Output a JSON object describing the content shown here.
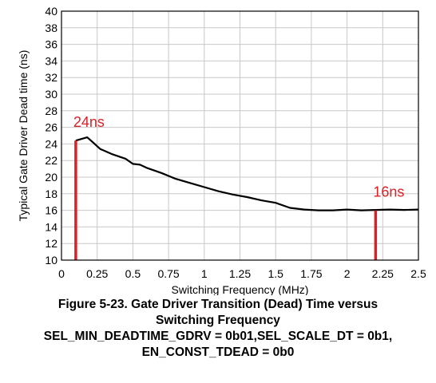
{
  "chart_data": {
    "type": "line",
    "xlabel": "Switching Frequency (MHz)",
    "ylabel": "Typical Gate Driver Dead time (ns)",
    "xlim": [
      0,
      2.5
    ],
    "ylim": [
      10,
      40
    ],
    "x_ticks": [
      "0",
      "0.25",
      "0.5",
      "0.75",
      "1",
      "1.25",
      "1.5",
      "1.75",
      "2",
      "2.25",
      "2.5"
    ],
    "y_ticks": [
      "10",
      "12",
      "14",
      "16",
      "18",
      "20",
      "22",
      "24",
      "26",
      "28",
      "30",
      "32",
      "34",
      "36",
      "38",
      "40"
    ],
    "grid": true,
    "series": [
      {
        "color": "#000000",
        "x": [
          0.1,
          0.18,
          0.22,
          0.27,
          0.35,
          0.45,
          0.5,
          0.55,
          0.6,
          0.7,
          0.8,
          0.9,
          1.0,
          1.1,
          1.2,
          1.3,
          1.4,
          1.5,
          1.6,
          1.7,
          1.8,
          1.9,
          2.0,
          2.1,
          2.2,
          2.3,
          2.4,
          2.5
        ],
        "values": [
          24.4,
          24.8,
          24.2,
          23.4,
          22.8,
          22.2,
          21.6,
          21.5,
          21.1,
          20.5,
          19.8,
          19.3,
          18.8,
          18.3,
          17.9,
          17.6,
          17.2,
          16.9,
          16.3,
          16.1,
          16.0,
          16.0,
          16.1,
          16.0,
          16.05,
          16.1,
          16.05,
          16.1
        ]
      }
    ],
    "markers": [
      {
        "x": 0.1,
        "y": 24.4,
        "label": "24ns",
        "color": "#dd1f26"
      },
      {
        "x": 2.2,
        "y": 16.0,
        "label": "16ns",
        "color": "#dd1f26"
      }
    ]
  },
  "caption": {
    "line1": "Figure 5-23. Gate Driver Transition (Dead) Time versus",
    "line2": "Switching Frequency",
    "line3": "SEL_MIN_DEADTIME_GDRV = 0b01,SEL_SCALE_DT = 0b1,",
    "line4": "EN_CONST_TDEAD = 0b0"
  }
}
